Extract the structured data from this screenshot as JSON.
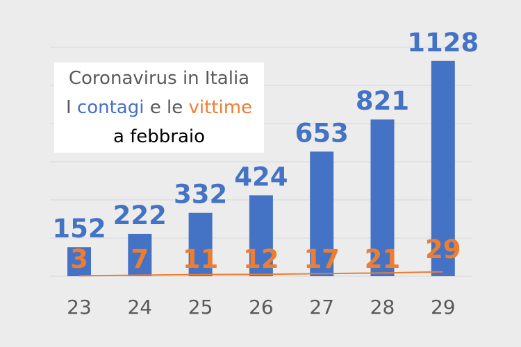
{
  "title": {
    "line1": "Coronavirus in Italia",
    "line2_prefix": "I ",
    "line2_contagi": "contagi",
    "line2_mid": " e le ",
    "line2_vittime": "vittime",
    "line3": "a febbraio"
  },
  "colors": {
    "contagi": "#4472c4",
    "vittime": "#ed7d31",
    "axis_text": "#595959",
    "grid": "#d9d9d9",
    "background": "#ececec"
  },
  "chart_data": {
    "type": "bar",
    "categories": [
      "23",
      "24",
      "25",
      "26",
      "27",
      "28",
      "29"
    ],
    "series": [
      {
        "name": "contagi",
        "values": [
          152,
          222,
          332,
          424,
          653,
          821,
          1128
        ]
      },
      {
        "name": "vittime",
        "values": [
          3,
          7,
          11,
          12,
          17,
          21,
          29
        ]
      }
    ],
    "ylim": [
      0,
      1200
    ],
    "grid": true
  }
}
